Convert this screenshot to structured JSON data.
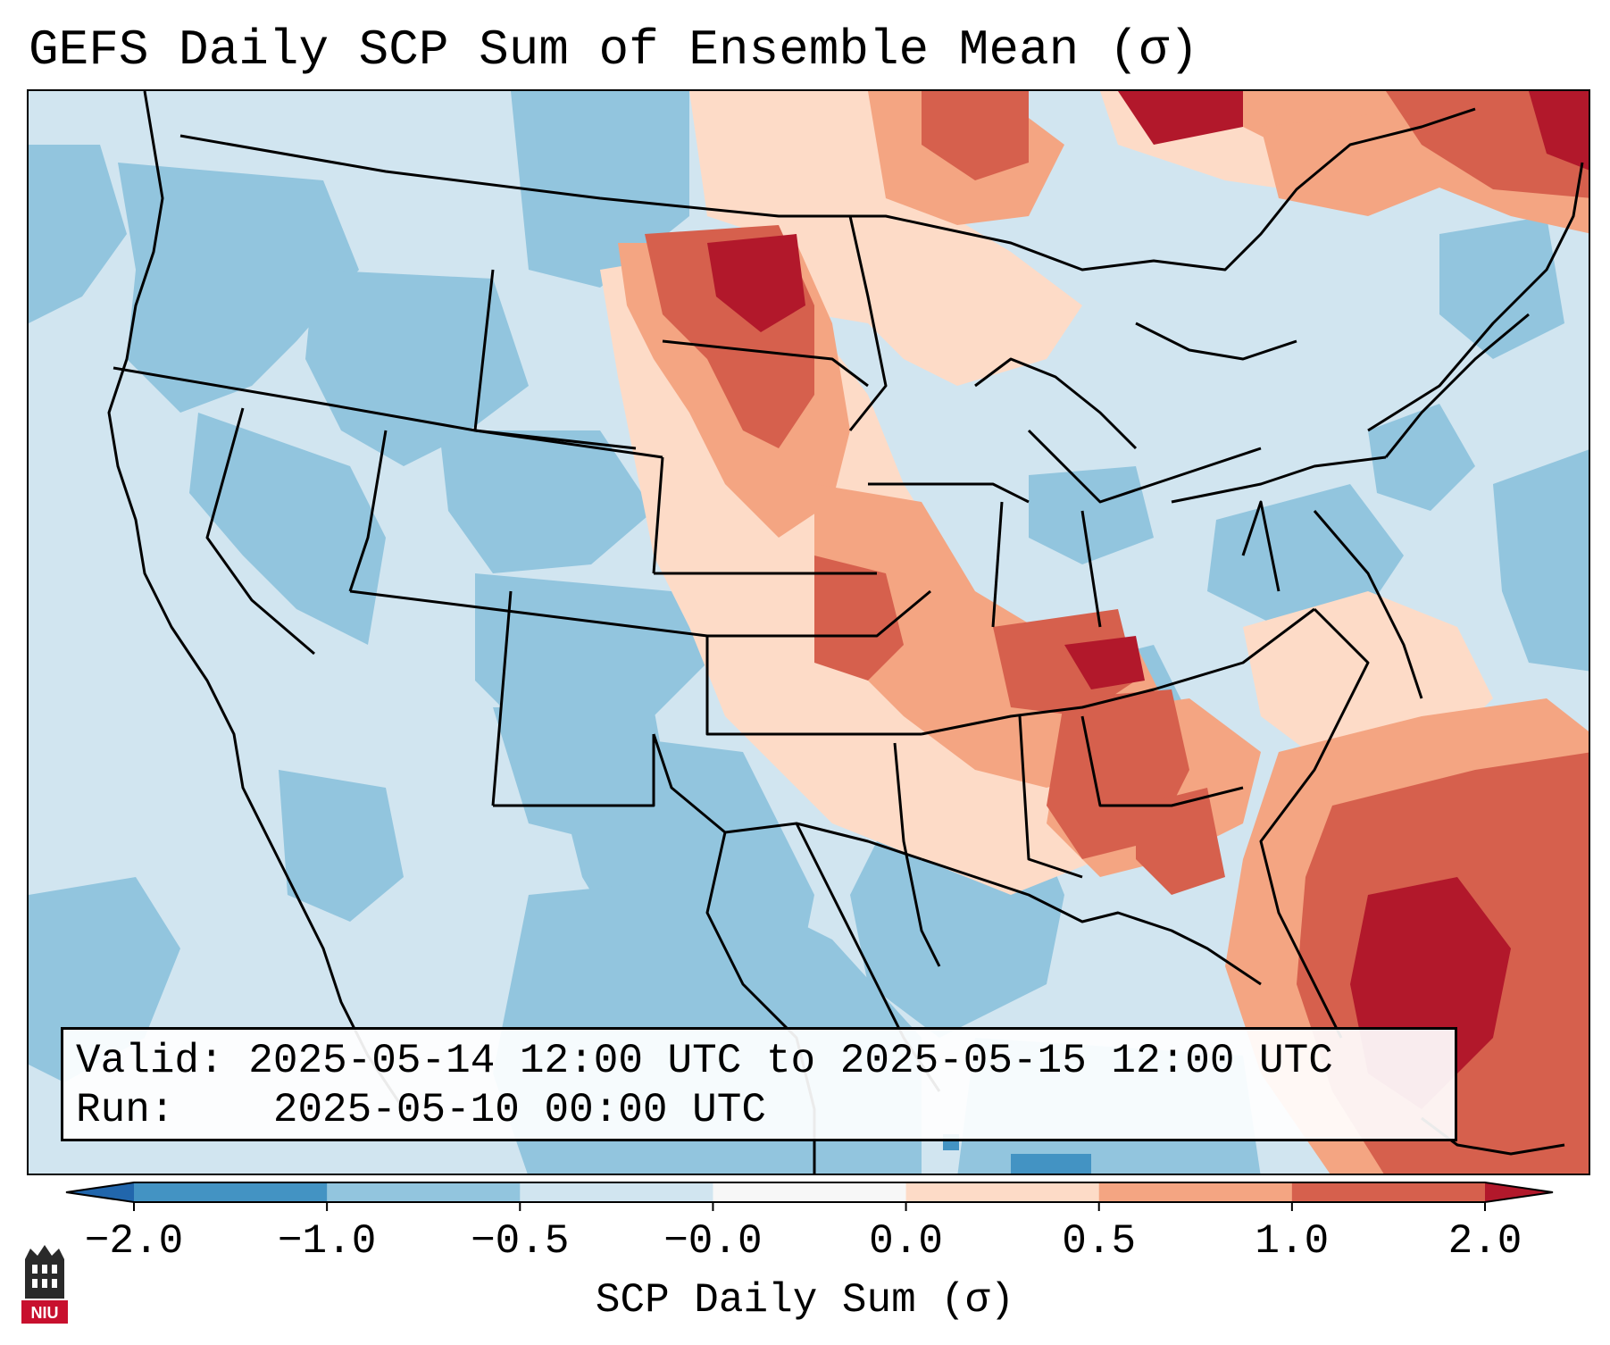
{
  "title": "GEFS Daily SCP Sum of Ensemble Mean (σ)",
  "info": {
    "valid_label": "Valid:",
    "valid_value": "2025-05-14 12:00 UTC to 2025-05-15 12:00 UTC",
    "run_label": "Run:",
    "run_value": "2025-05-10 00:00 UTC"
  },
  "colorbar": {
    "label": "SCP Daily Sum (σ)",
    "ticks": [
      "−2.0",
      "−1.0",
      "−0.5",
      "−0.0",
      "0.0",
      "0.5",
      "1.0",
      "2.0"
    ],
    "colors": [
      "#4393c3",
      "#92c5de",
      "#d1e5f0",
      "#f7f7f7",
      "#fddbc7",
      "#f4a582",
      "#d6604d",
      "#b2182b"
    ],
    "extend": "both"
  },
  "map": {
    "projection": "Lambert conformal CONUS",
    "field": "SCP daily sum anomaly (σ)",
    "palette": {
      "strong_negative": "#4393c3",
      "negative": "#92c5de",
      "weak_negative": "#d1e5f0",
      "weak_positive": "#fddbc7",
      "positive": "#f4a582",
      "strong_positive": "#d6604d",
      "extreme_positive": "#b2182b"
    }
  },
  "logo": {
    "text": "NIU"
  }
}
